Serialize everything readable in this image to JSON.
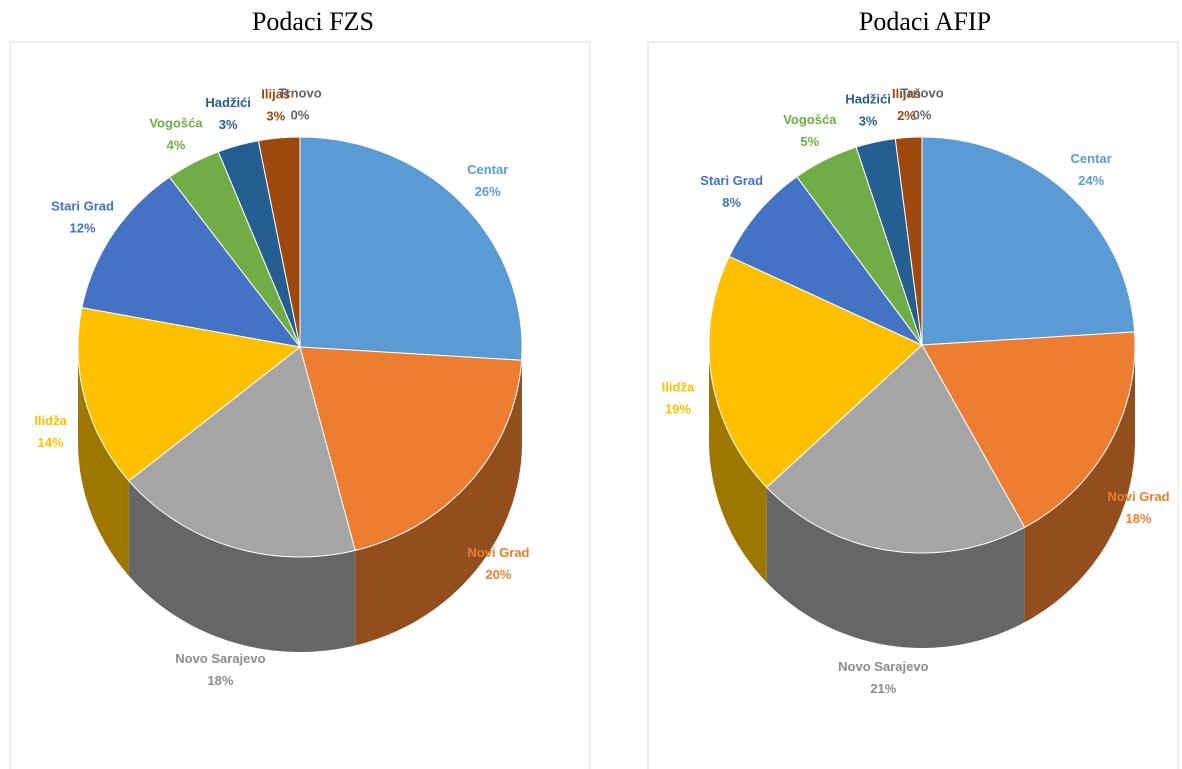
{
  "chart_data": [
    {
      "type": "pie",
      "title": "Podaci FZS",
      "categories": [
        "Centar",
        "Novi Grad",
        "Novo Sarajevo",
        "Ilidža",
        "Stari Grad",
        "Vogošća",
        "Hadžići",
        "Ilijaš",
        "Trnovo"
      ],
      "values": [
        26,
        20,
        18,
        14,
        12,
        4,
        3,
        3,
        0
      ],
      "value_labels": [
        "26%",
        "20%",
        "18%",
        "14%",
        "12%",
        "4%",
        "3%",
        "3%",
        "0%"
      ],
      "colors": [
        "#5b9bd5",
        "#ed7d31",
        "#a5a5a5",
        "#ffc000",
        "#4472c4",
        "#70ad47",
        "#255e91",
        "#9e480e",
        "#636363"
      ]
    },
    {
      "type": "pie",
      "title": "Podaci AFIP",
      "categories": [
        "Centar",
        "Novi Grad",
        "Novo Sarajevo",
        "Ilidža",
        "Stari Grad",
        "Vogošća",
        "Hadžići",
        "Ilijaš",
        "Trnovo"
      ],
      "values": [
        24,
        18,
        21,
        19,
        8,
        5,
        3,
        2,
        0
      ],
      "value_labels": [
        "24%",
        "18%",
        "21%",
        "19%",
        "8%",
        "5%",
        "3%",
        "2%",
        "0%"
      ],
      "colors": [
        "#5b9bd5",
        "#ed7d31",
        "#a5a5a5",
        "#ffc000",
        "#4472c4",
        "#70ad47",
        "#255e91",
        "#9e480e",
        "#636363"
      ]
    }
  ]
}
